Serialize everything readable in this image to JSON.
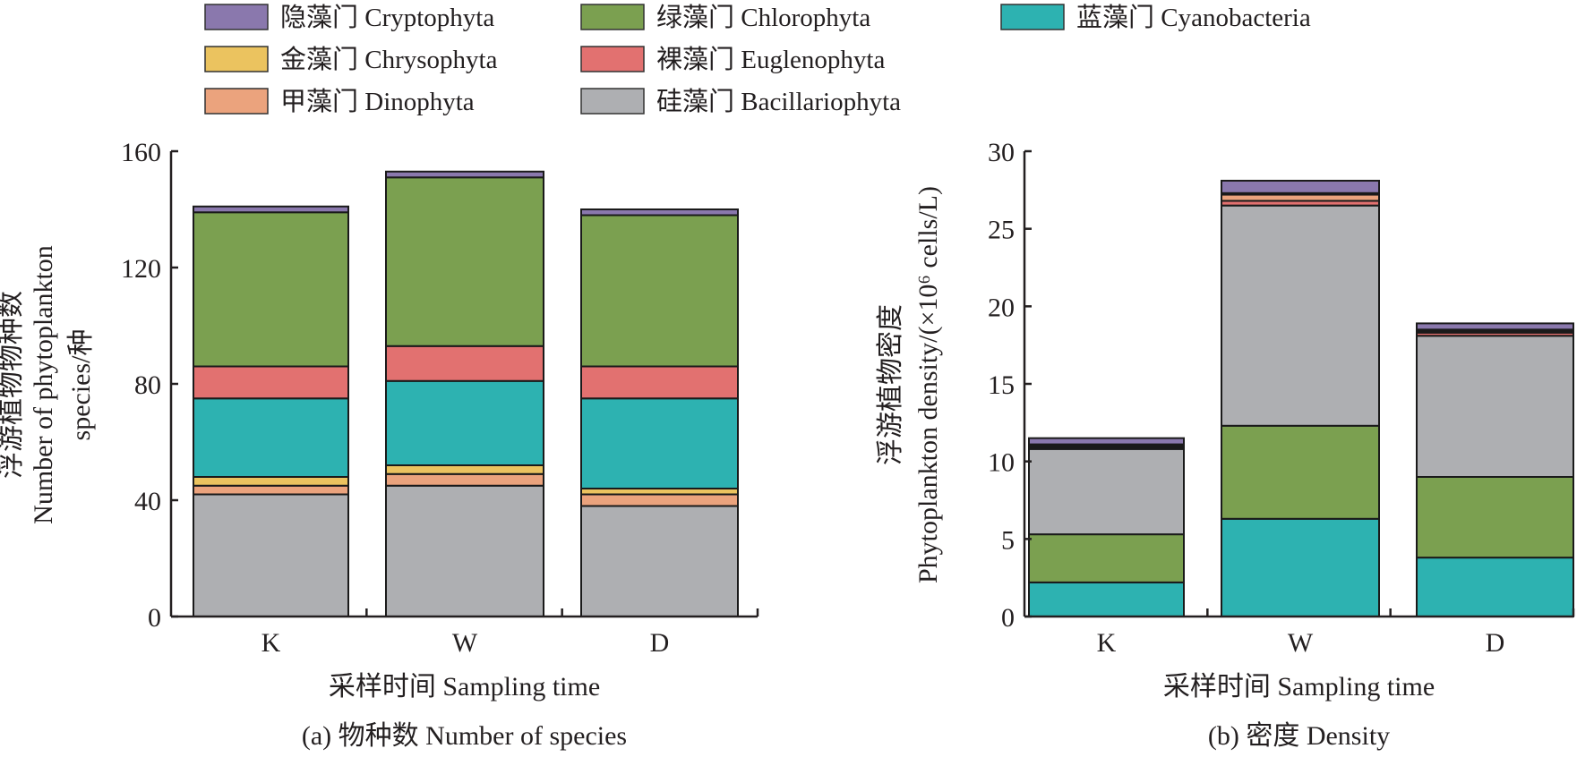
{
  "legend": [
    {
      "key": "crypto",
      "label": "隐藻门 Cryptophyta",
      "color": "#8A78AD"
    },
    {
      "key": "chloro",
      "label": "绿藻门 Chlorophyta",
      "color": "#7BA050"
    },
    {
      "key": "cyano",
      "label": "蓝藻门 Cyanobacteria",
      "color": "#2DB2B1"
    },
    {
      "key": "chryso",
      "label": "金藻门 Chrysophyta",
      "color": "#EBC35F"
    },
    {
      "key": "eugl",
      "label": "裸藻门 Euglenophyta",
      "color": "#E27170"
    },
    {
      "key": "dino",
      "label": "甲藻门 Dinophyta",
      "color": "#EBA37D"
    },
    {
      "key": "bac",
      "label": "硅藻门 Bacillariophyta",
      "color": "#AEAFB2"
    }
  ],
  "chart_data": [
    {
      "type": "bar",
      "stacked": true,
      "caption": "(a) 物种数 Number of species",
      "xlabel": "采样时间 Sampling time",
      "ylabel_lines": [
        "浮游植物物种数",
        "Number of phytoplankton",
        "species/种"
      ],
      "categories": [
        "K",
        "W",
        "D"
      ],
      "ylim": [
        0,
        160
      ],
      "yticks": [
        0,
        40,
        80,
        120,
        160
      ],
      "stack_order": [
        "bac",
        "dino",
        "chryso",
        "cyano",
        "eugl",
        "chloro",
        "crypto"
      ],
      "series": [
        {
          "key": "bac",
          "name": "硅藻门 Bacillariophyta",
          "values": [
            42,
            45,
            38
          ]
        },
        {
          "key": "dino",
          "name": "甲藻门 Dinophyta",
          "values": [
            3,
            4,
            4
          ]
        },
        {
          "key": "chryso",
          "name": "金藻门 Chrysophyta",
          "values": [
            3,
            3,
            2
          ]
        },
        {
          "key": "cyano",
          "name": "蓝藻门 Cyanobacteria",
          "values": [
            27,
            29,
            31
          ]
        },
        {
          "key": "eugl",
          "name": "裸藻门 Euglenophyta",
          "values": [
            11,
            12,
            11
          ]
        },
        {
          "key": "chloro",
          "name": "绿藻门 Chlorophyta",
          "values": [
            53,
            58,
            52
          ]
        },
        {
          "key": "crypto",
          "name": "隐藻门 Cryptophyta",
          "values": [
            2,
            2,
            2
          ]
        }
      ],
      "legend_position": "top"
    },
    {
      "type": "bar",
      "stacked": true,
      "caption": "(b) 密度 Density",
      "xlabel": "采样时间 Sampling time",
      "ylabel_lines": [
        "浮游植物密度",
        "Phytoplankton density/(×10⁶ cells/L)"
      ],
      "categories": [
        "K",
        "W",
        "D"
      ],
      "ylim": [
        0,
        30
      ],
      "yticks": [
        0,
        5,
        10,
        15,
        20,
        25,
        30
      ],
      "stack_order": [
        "cyano",
        "chloro",
        "bac",
        "eugl",
        "dino",
        "chryso",
        "crypto"
      ],
      "series": [
        {
          "key": "cyano",
          "name": "蓝藻门 Cyanobacteria",
          "values": [
            2.2,
            6.3,
            3.8
          ]
        },
        {
          "key": "chloro",
          "name": "绿藻门 Chlorophyta",
          "values": [
            3.1,
            6.0,
            5.2
          ]
        },
        {
          "key": "bac",
          "name": "硅藻门 Bacillariophyta",
          "values": [
            5.5,
            14.2,
            9.1
          ]
        },
        {
          "key": "eugl",
          "name": "裸藻门 Euglenophyta",
          "values": [
            0.1,
            0.3,
            0.2
          ]
        },
        {
          "key": "dino",
          "name": "甲藻门 Dinophyta",
          "values": [
            0.1,
            0.4,
            0.1
          ]
        },
        {
          "key": "chryso",
          "name": "金藻门 Chrysophyta",
          "values": [
            0.1,
            0.1,
            0.1
          ]
        },
        {
          "key": "crypto",
          "name": "隐藻门 Cryptophyta",
          "values": [
            0.4,
            0.8,
            0.4
          ]
        }
      ],
      "legend_position": "top"
    }
  ]
}
